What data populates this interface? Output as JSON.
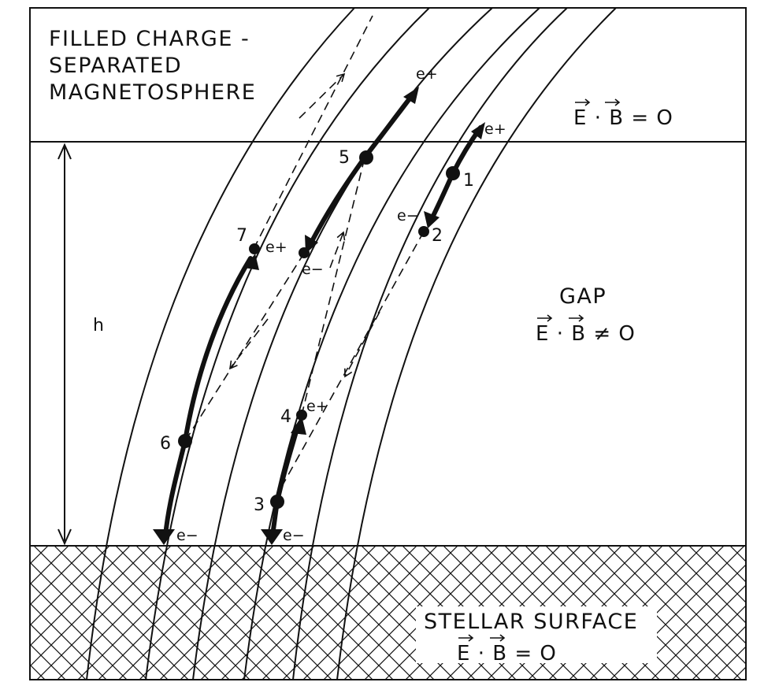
{
  "regions": {
    "magnetosphere": {
      "line1": "FILLED CHARGE -",
      "line2": "SEPARATED",
      "line3": "MAGNETOSPHERE",
      "condition": "E · B = O"
    },
    "gap": {
      "title": "GAP",
      "condition": "E · B ≠ O"
    },
    "surface": {
      "title": "STELLAR SURFACE",
      "condition": "E · B = O"
    }
  },
  "dimension": {
    "label": "h"
  },
  "events": {
    "n1": "1",
    "n2": "2",
    "n3": "3",
    "n4": "4",
    "n5": "5",
    "n6": "6",
    "n7": "7"
  },
  "particles": {
    "positron": "e+",
    "electron": "e−"
  },
  "colors": {
    "ink": "#111111",
    "background": "#ffffff"
  }
}
